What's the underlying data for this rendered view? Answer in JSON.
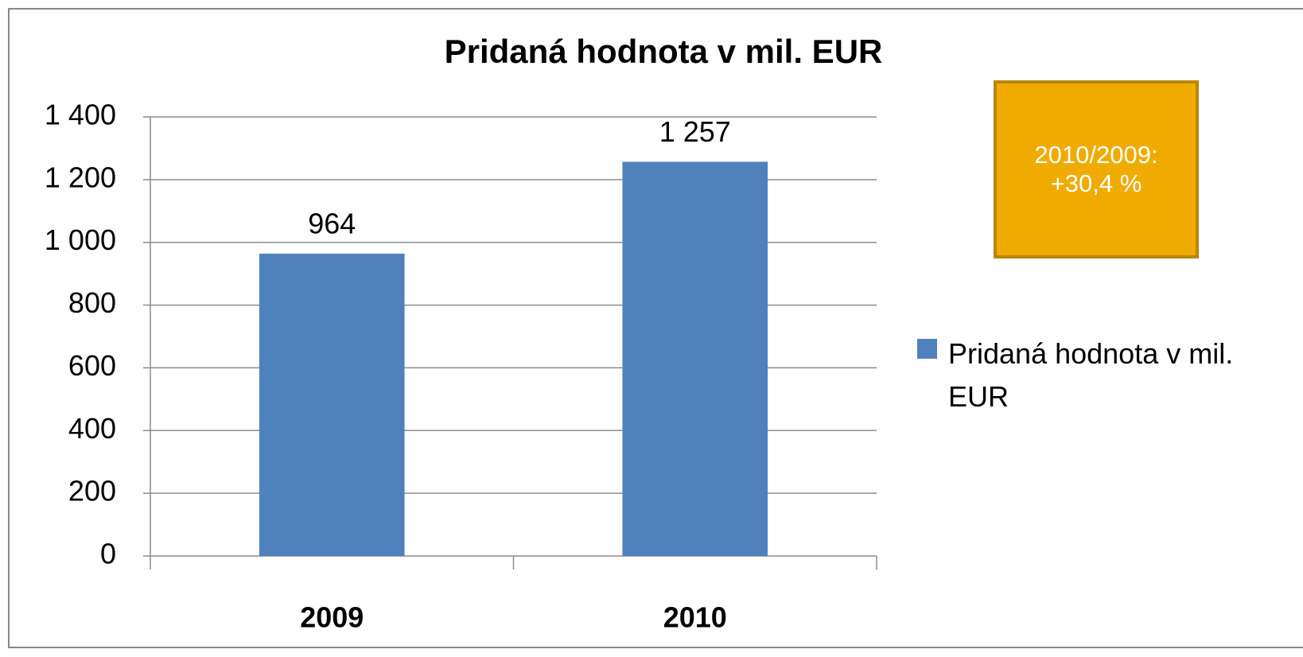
{
  "chart_data": {
    "type": "bar",
    "title": "Pridaná hodnota v mil. EUR",
    "categories": [
      "2009",
      "2010"
    ],
    "series": [
      {
        "name": "Pridaná hodnota v mil. EUR",
        "color": "#4f81bd",
        "values": [
          964,
          1257
        ],
        "value_labels": [
          "964",
          "1 257"
        ]
      }
    ],
    "ylim": [
      0,
      1400
    ],
    "yticks": [
      0,
      200,
      400,
      600,
      800,
      {
        "value": 1000,
        "label": "1 000"
      },
      {
        "value": 1200,
        "label": "1 200"
      },
      {
        "value": 1400,
        "label": "1 400"
      }
    ],
    "grid": true,
    "legend": "right",
    "annotation": "2010/2009: +30,4 %"
  }
}
